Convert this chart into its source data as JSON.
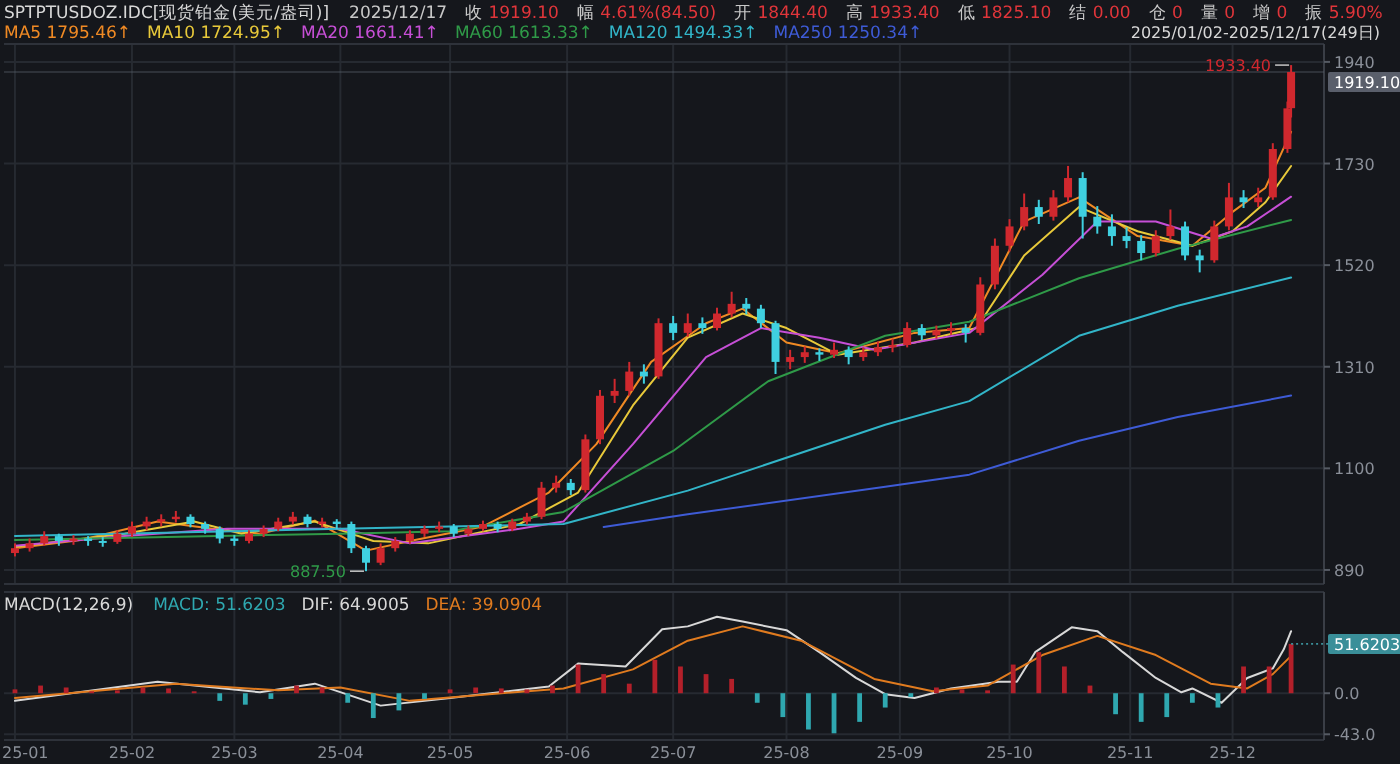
{
  "chart_data": [
    {
      "type": "candlestick",
      "title": "SPTPTUSDOZ.IDC[现货铂金(美元/盎司)]",
      "subtitle": "2025/01/02-2025/12/17(249日)",
      "annotations": [
        "2025/12/17",
        "收 1919.10",
        "幅 4.61%(84.50)",
        "开 1844.40",
        "高 1933.40",
        "低 1825.10",
        "结 0.00",
        "仓 0",
        "量 0",
        "增 0",
        "振 5.90%",
        {
          "text": "1933.40",
          "x": "2025-12-17",
          "y": 1933.4
        },
        {
          "text": "887.50",
          "x": "2025-04-08",
          "y": 887.5
        }
      ],
      "x": [
        "2025-01-02",
        "2025-01-06",
        "2025-01-10",
        "2025-01-14",
        "2025-01-18",
        "2025-01-22",
        "2025-01-26",
        "2025-01-30",
        "2025-02-03",
        "2025-02-07",
        "2025-02-11",
        "2025-02-15",
        "2025-02-19",
        "2025-02-23",
        "2025-02-27",
        "2025-03-03",
        "2025-03-07",
        "2025-03-11",
        "2025-03-15",
        "2025-03-19",
        "2025-03-23",
        "2025-03-27",
        "2025-03-31",
        "2025-04-04",
        "2025-04-08",
        "2025-04-12",
        "2025-04-16",
        "2025-04-20",
        "2025-04-24",
        "2025-04-28",
        "2025-05-02",
        "2025-05-06",
        "2025-05-10",
        "2025-05-14",
        "2025-05-18",
        "2025-05-22",
        "2025-05-26",
        "2025-05-30",
        "2025-06-03",
        "2025-06-07",
        "2025-06-11",
        "2025-06-15",
        "2025-06-19",
        "2025-06-23",
        "2025-06-27",
        "2025-07-01",
        "2025-07-05",
        "2025-07-09",
        "2025-07-13",
        "2025-07-17",
        "2025-07-21",
        "2025-07-25",
        "2025-07-29",
        "2025-08-02",
        "2025-08-06",
        "2025-08-10",
        "2025-08-14",
        "2025-08-18",
        "2025-08-22",
        "2025-08-26",
        "2025-08-30",
        "2025-09-03",
        "2025-09-07",
        "2025-09-11",
        "2025-09-15",
        "2025-09-19",
        "2025-09-23",
        "2025-09-27",
        "2025-10-01",
        "2025-10-05",
        "2025-10-09",
        "2025-10-13",
        "2025-10-17",
        "2025-10-21",
        "2025-10-25",
        "2025-10-29",
        "2025-11-02",
        "2025-11-06",
        "2025-11-10",
        "2025-11-14",
        "2025-11-18",
        "2025-11-22",
        "2025-11-26",
        "2025-11-30",
        "2025-12-04",
        "2025-12-08",
        "2025-12-12",
        "2025-12-16",
        "2025-12-17"
      ],
      "ohlc": [
        [
          925,
          945,
          918,
          935
        ],
        [
          935,
          955,
          928,
          945
        ],
        [
          945,
          970,
          940,
          960
        ],
        [
          960,
          965,
          940,
          950
        ],
        [
          950,
          962,
          942,
          955
        ],
        [
          955,
          960,
          940,
          950
        ],
        [
          950,
          958,
          938,
          948
        ],
        [
          948,
          972,
          944,
          965
        ],
        [
          965,
          990,
          958,
          980
        ],
        [
          980,
          1000,
          972,
          990
        ],
        [
          990,
          1005,
          980,
          995
        ],
        [
          995,
          1012,
          988,
          1000
        ],
        [
          1000,
          1005,
          978,
          985
        ],
        [
          985,
          990,
          965,
          975
        ],
        [
          975,
          980,
          945,
          955
        ],
        [
          955,
          962,
          940,
          950
        ],
        [
          950,
          972,
          945,
          965
        ],
        [
          965,
          982,
          958,
          975
        ],
        [
          975,
          998,
          970,
          990
        ],
        [
          990,
          1010,
          984,
          1000
        ],
        [
          1000,
          1005,
          978,
          985
        ],
        [
          985,
          998,
          978,
          990
        ],
        [
          990,
          995,
          975,
          985
        ],
        [
          985,
          990,
          925,
          935
        ],
        [
          935,
          940,
          887.5,
          905
        ],
        [
          905,
          945,
          900,
          935
        ],
        [
          935,
          958,
          928,
          950
        ],
        [
          950,
          972,
          944,
          965
        ],
        [
          965,
          982,
          958,
          975
        ],
        [
          975,
          990,
          968,
          980
        ],
        [
          980,
          985,
          958,
          965
        ],
        [
          965,
          982,
          960,
          975
        ],
        [
          975,
          992,
          970,
          985
        ],
        [
          985,
          990,
          968,
          975
        ],
        [
          975,
          996,
          970,
          990
        ],
        [
          990,
          1008,
          984,
          1000
        ],
        [
          1000,
          1072,
          995,
          1060
        ],
        [
          1060,
          1085,
          1050,
          1070
        ],
        [
          1070,
          1078,
          1045,
          1055
        ],
        [
          1055,
          1170,
          1050,
          1160
        ],
        [
          1160,
          1262,
          1150,
          1250
        ],
        [
          1250,
          1285,
          1235,
          1260
        ],
        [
          1260,
          1320,
          1250,
          1300
        ],
        [
          1300,
          1315,
          1275,
          1290
        ],
        [
          1290,
          1410,
          1285,
          1400
        ],
        [
          1400,
          1415,
          1365,
          1380
        ],
        [
          1380,
          1420,
          1372,
          1400
        ],
        [
          1400,
          1412,
          1378,
          1390
        ],
        [
          1390,
          1432,
          1385,
          1420
        ],
        [
          1420,
          1465,
          1412,
          1440
        ],
        [
          1440,
          1452,
          1418,
          1430
        ],
        [
          1430,
          1438,
          1390,
          1400
        ],
        [
          1400,
          1405,
          1295,
          1320
        ],
        [
          1320,
          1345,
          1305,
          1330
        ],
        [
          1330,
          1352,
          1318,
          1340
        ],
        [
          1340,
          1348,
          1322,
          1335
        ],
        [
          1335,
          1360,
          1328,
          1345
        ],
        [
          1345,
          1352,
          1315,
          1330
        ],
        [
          1330,
          1350,
          1322,
          1340
        ],
        [
          1340,
          1362,
          1332,
          1350
        ],
        [
          1350,
          1368,
          1340,
          1355
        ],
        [
          1355,
          1402,
          1350,
          1390
        ],
        [
          1390,
          1398,
          1365,
          1375
        ],
        [
          1375,
          1395,
          1368,
          1385
        ],
        [
          1385,
          1402,
          1376,
          1390
        ],
        [
          1390,
          1398,
          1360,
          1380
        ],
        [
          1380,
          1495,
          1375,
          1480
        ],
        [
          1480,
          1575,
          1470,
          1560
        ],
        [
          1560,
          1615,
          1548,
          1600
        ],
        [
          1600,
          1668,
          1592,
          1640
        ],
        [
          1640,
          1655,
          1605,
          1620
        ],
        [
          1620,
          1675,
          1612,
          1660
        ],
        [
          1660,
          1725,
          1650,
          1700
        ],
        [
          1700,
          1712,
          1575,
          1620
        ],
        [
          1620,
          1642,
          1585,
          1600
        ],
        [
          1600,
          1625,
          1560,
          1580
        ],
        [
          1580,
          1598,
          1555,
          1570
        ],
        [
          1570,
          1582,
          1530,
          1545
        ],
        [
          1545,
          1592,
          1538,
          1580
        ],
        [
          1580,
          1635,
          1572,
          1600
        ],
        [
          1600,
          1610,
          1530,
          1540
        ],
        [
          1540,
          1552,
          1505,
          1530
        ],
        [
          1530,
          1612,
          1525,
          1600
        ],
        [
          1600,
          1690,
          1592,
          1660
        ],
        [
          1660,
          1675,
          1638,
          1650
        ],
        [
          1650,
          1680,
          1640,
          1660
        ],
        [
          1660,
          1772,
          1655,
          1760
        ],
        [
          1760,
          1858,
          1752,
          1844
        ],
        [
          1844.4,
          1933.4,
          1825.1,
          1919.1
        ]
      ],
      "series": [
        {
          "name": "MA5 1795.46↑",
          "type": "line",
          "color": "#f08a24",
          "x": [
            "2025-01-02",
            "2025-01-20",
            "2025-02-10",
            "2025-02-25",
            "2025-03-10",
            "2025-03-25",
            "2025-04-08",
            "2025-04-20",
            "2025-05-10",
            "2025-05-28",
            "2025-06-10",
            "2025-06-25",
            "2025-07-10",
            "2025-07-20",
            "2025-08-01",
            "2025-08-15",
            "2025-09-05",
            "2025-09-20",
            "2025-10-05",
            "2025-10-20",
            "2025-11-05",
            "2025-11-20",
            "2025-12-01",
            "2025-12-10",
            "2025-12-17"
          ],
          "values": [
            935,
            952,
            990,
            975,
            965,
            992,
            930,
            950,
            980,
            1050,
            1150,
            1320,
            1400,
            1430,
            1360,
            1338,
            1380,
            1390,
            1610,
            1660,
            1580,
            1560,
            1630,
            1680,
            1795.46
          ]
        },
        {
          "name": "MA10 1724.95↑",
          "type": "line",
          "color": "#e8c93a",
          "x": [
            "2025-01-02",
            "2025-02-01",
            "2025-02-20",
            "2025-03-05",
            "2025-03-25",
            "2025-04-10",
            "2025-04-25",
            "2025-05-20",
            "2025-06-05",
            "2025-06-20",
            "2025-07-05",
            "2025-07-20",
            "2025-08-01",
            "2025-08-15",
            "2025-09-05",
            "2025-09-22",
            "2025-10-05",
            "2025-10-20",
            "2025-11-05",
            "2025-11-20",
            "2025-12-01",
            "2025-12-10",
            "2025-12-17"
          ],
          "values": [
            938,
            965,
            990,
            965,
            990,
            950,
            945,
            985,
            1050,
            1230,
            1370,
            1420,
            1390,
            1335,
            1360,
            1390,
            1540,
            1640,
            1590,
            1560,
            1590,
            1650,
            1724.95
          ]
        },
        {
          "name": "MA20 1661.41↑",
          "type": "line",
          "color": "#c64fd6",
          "x": [
            "2025-01-02",
            "2025-02-01",
            "2025-03-01",
            "2025-04-01",
            "2025-04-20",
            "2025-05-20",
            "2025-06-01",
            "2025-06-20",
            "2025-07-10",
            "2025-07-25",
            "2025-08-10",
            "2025-08-25",
            "2025-09-20",
            "2025-10-10",
            "2025-10-25",
            "2025-11-10",
            "2025-11-25",
            "2025-12-05",
            "2025-12-17"
          ],
          "values": [
            940,
            960,
            975,
            975,
            945,
            975,
            990,
            1150,
            1330,
            1390,
            1370,
            1345,
            1380,
            1500,
            1610,
            1610,
            1575,
            1600,
            1661.41
          ]
        },
        {
          "name": "MA60 1613.33↑",
          "type": "line",
          "color": "#2f9a48",
          "x": [
            "2025-01-02",
            "2025-04-01",
            "2025-05-01",
            "2025-06-01",
            "2025-07-01",
            "2025-07-27",
            "2025-08-28",
            "2025-09-20",
            "2025-10-20",
            "2025-11-16",
            "2025-12-17"
          ],
          "values": [
            952,
            965,
            970,
            1010,
            1136,
            1280,
            1374,
            1403,
            1493,
            1554,
            1613.33
          ]
        },
        {
          "name": "MA120 1494.33↑",
          "type": "line",
          "color": "#32b5c8",
          "x": [
            "2025-01-02",
            "2025-04-01",
            "2025-06-01",
            "2025-07-05",
            "2025-08-28",
            "2025-09-20",
            "2025-10-20",
            "2025-11-16",
            "2025-12-17"
          ],
          "values": [
            960,
            975,
            985,
            1054,
            1190,
            1239,
            1374,
            1436,
            1494.33
          ]
        },
        {
          "name": "MA250 1250.34↑",
          "type": "line",
          "color": "#3e5bd6",
          "x": [
            "2025-06-12",
            "2025-07-05",
            "2025-08-28",
            "2025-09-20",
            "2025-10-20",
            "2025-11-16",
            "2025-12-17"
          ],
          "values": [
            979,
            1005,
            1062,
            1087,
            1157,
            1206,
            1250.34
          ]
        }
      ],
      "xlim": [
        "2024-12-30",
        "2025-12-26"
      ],
      "xticks": [
        {
          "value": "2025-01-02",
          "label": null
        },
        {
          "value": "2025-02-03",
          "label": null
        },
        {
          "value": "2025-03-03",
          "label": null
        },
        {
          "value": "2025-04-01",
          "label": null
        },
        {
          "value": "2025-05-01",
          "label": null
        },
        {
          "value": "2025-06-02",
          "label": null
        },
        {
          "value": "2025-07-01",
          "label": null
        },
        {
          "value": "2025-08-01",
          "label": null
        },
        {
          "value": "2025-09-01",
          "label": null
        },
        {
          "value": "2025-10-01",
          "label": null
        },
        {
          "value": "2025-11-03",
          "label": null
        },
        {
          "value": "2025-12-01",
          "label": null
        }
      ],
      "ylim": [
        861,
        1977
      ],
      "yticks": [
        890,
        1100,
        1310,
        1520,
        1730,
        1940
      ],
      "grid": true,
      "legend": "top left",
      "tick_labels": "y",
      "ref_lines": [
        {
          "axis": "y",
          "value": 1919.1,
          "label": "1919.10",
          "color": "#5a5f6b",
          "line_style": "solid"
        }
      ]
    },
    {
      "type": "line",
      "title": "MACD(12,26,9)",
      "series": [
        {
          "name": "MACD: 51.6203",
          "type": "bar",
          "color": "#2fa8b0",
          "x": [
            "2025-01-02",
            "2025-01-09",
            "2025-01-16",
            "2025-01-23",
            "2025-01-30",
            "2025-02-06",
            "2025-02-13",
            "2025-02-20",
            "2025-02-27",
            "2025-03-06",
            "2025-03-13",
            "2025-03-20",
            "2025-03-27",
            "2025-04-03",
            "2025-04-10",
            "2025-04-17",
            "2025-04-24",
            "2025-05-01",
            "2025-05-08",
            "2025-05-15",
            "2025-05-22",
            "2025-05-29",
            "2025-06-05",
            "2025-06-12",
            "2025-06-19",
            "2025-06-26",
            "2025-07-03",
            "2025-07-10",
            "2025-07-17",
            "2025-07-24",
            "2025-07-31",
            "2025-08-07",
            "2025-08-14",
            "2025-08-21",
            "2025-08-28",
            "2025-09-04",
            "2025-09-11",
            "2025-09-18",
            "2025-09-25",
            "2025-10-02",
            "2025-10-09",
            "2025-10-16",
            "2025-10-23",
            "2025-10-30",
            "2025-11-06",
            "2025-11-13",
            "2025-11-20",
            "2025-11-27",
            "2025-12-04",
            "2025-12-11",
            "2025-12-17"
          ],
          "values": [
            4,
            8,
            6,
            2,
            3,
            6,
            5,
            2,
            -8,
            -12,
            -6,
            8,
            6,
            -10,
            -26,
            -18,
            -6,
            4,
            6,
            5,
            4,
            8,
            30,
            20,
            10,
            35,
            28,
            20,
            15,
            -10,
            -25,
            -38,
            -42,
            -30,
            -15,
            -4,
            6,
            4,
            3,
            30,
            43,
            28,
            8,
            -22,
            -30,
            -25,
            -10,
            -15,
            28,
            28,
            51.6203
          ],
          "colors": [
            "#b3202a",
            "#b3202a",
            "#b3202a",
            "#b3202a",
            "#b3202a",
            "#b3202a",
            "#b3202a",
            "#b3202a",
            "#2fa8b0",
            "#2fa8b0",
            "#2fa8b0",
            "#b3202a",
            "#b3202a",
            "#2fa8b0",
            "#2fa8b0",
            "#2fa8b0",
            "#2fa8b0",
            "#b3202a",
            "#b3202a",
            "#b3202a",
            "#b3202a",
            "#b3202a",
            "#b3202a",
            "#b3202a",
            "#b3202a",
            "#b3202a",
            "#b3202a",
            "#b3202a",
            "#b3202a",
            "#2fa8b0",
            "#2fa8b0",
            "#2fa8b0",
            "#2fa8b0",
            "#2fa8b0",
            "#2fa8b0",
            "#2fa8b0",
            "#b3202a",
            "#b3202a",
            "#b3202a",
            "#b3202a",
            "#b3202a",
            "#b3202a",
            "#b3202a",
            "#2fa8b0",
            "#2fa8b0",
            "#2fa8b0",
            "#2fa8b0",
            "#2fa8b0",
            "#b3202a",
            "#b3202a",
            "#b3202a"
          ]
        },
        {
          "name": "DIF: 64.9005",
          "type": "line",
          "color": "#d8d8d8",
          "x": [
            "2025-01-02",
            "2025-02-10",
            "2025-03-10",
            "2025-03-25",
            "2025-04-12",
            "2025-05-01",
            "2025-05-28",
            "2025-06-05",
            "2025-06-18",
            "2025-06-28",
            "2025-07-05",
            "2025-07-13",
            "2025-07-20",
            "2025-08-01",
            "2025-08-10",
            "2025-08-20",
            "2025-08-28",
            "2025-09-05",
            "2025-09-15",
            "2025-09-28",
            "2025-10-03",
            "2025-10-08",
            "2025-10-18",
            "2025-10-25",
            "2025-11-01",
            "2025-11-10",
            "2025-11-17",
            "2025-11-20",
            "2025-11-28",
            "2025-12-05",
            "2025-12-12",
            "2025-12-15",
            "2025-12-17"
          ],
          "values": [
            -8,
            12,
            1,
            10,
            -13,
            -5,
            7,
            31,
            28,
            67,
            70,
            80,
            75,
            66,
            43,
            16,
            -1,
            -5,
            5,
            12,
            12,
            43,
            69,
            65,
            43,
            16,
            1,
            5,
            -10,
            16,
            26,
            46,
            64.9005
          ]
        },
        {
          "name": "DEA: 39.0904",
          "type": "line",
          "color": "#e07b1f",
          "x": [
            "2025-01-02",
            "2025-02-15",
            "2025-03-15",
            "2025-04-01",
            "2025-04-20",
            "2025-05-15",
            "2025-06-01",
            "2025-06-20",
            "2025-07-05",
            "2025-07-20",
            "2025-08-05",
            "2025-08-25",
            "2025-09-10",
            "2025-09-25",
            "2025-10-10",
            "2025-10-25",
            "2025-11-10",
            "2025-11-25",
            "2025-12-05",
            "2025-12-12",
            "2025-12-17"
          ],
          "values": [
            -5,
            10,
            3,
            6,
            -8,
            0,
            5,
            25,
            55,
            70,
            55,
            15,
            2,
            8,
            40,
            60,
            40,
            10,
            5,
            20,
            39.0904
          ]
        }
      ],
      "xlim": [
        "2024-12-30",
        "2025-12-26"
      ],
      "xticks": [
        {
          "value": "2025-01-02",
          "label": "25-01"
        },
        {
          "value": "2025-02-03",
          "label": "25-02"
        },
        {
          "value": "2025-03-03",
          "label": "25-03"
        },
        {
          "value": "2025-04-01",
          "label": "25-04"
        },
        {
          "value": "2025-05-01",
          "label": "25-05"
        },
        {
          "value": "2025-06-02",
          "label": "25-06"
        },
        {
          "value": "2025-07-01",
          "label": "25-07"
        },
        {
          "value": "2025-08-01",
          "label": "25-08"
        },
        {
          "value": "2025-09-01",
          "label": "25-09"
        },
        {
          "value": "2025-10-01",
          "label": "25-10"
        },
        {
          "value": "2025-11-03",
          "label": "25-11"
        },
        {
          "value": "2025-12-01",
          "label": "25-12"
        }
      ],
      "ylim": [
        -49,
        106
      ],
      "yticks": [
        {
          "value": 0,
          "label": "0.0"
        },
        {
          "value": -43,
          "label": "-43.0"
        }
      ],
      "grid": true,
      "legend": "top left",
      "annotations": [
        {
          "text": "51.6203",
          "x": "2025-12-17",
          "y": 51.6203
        }
      ]
    }
  ]
}
